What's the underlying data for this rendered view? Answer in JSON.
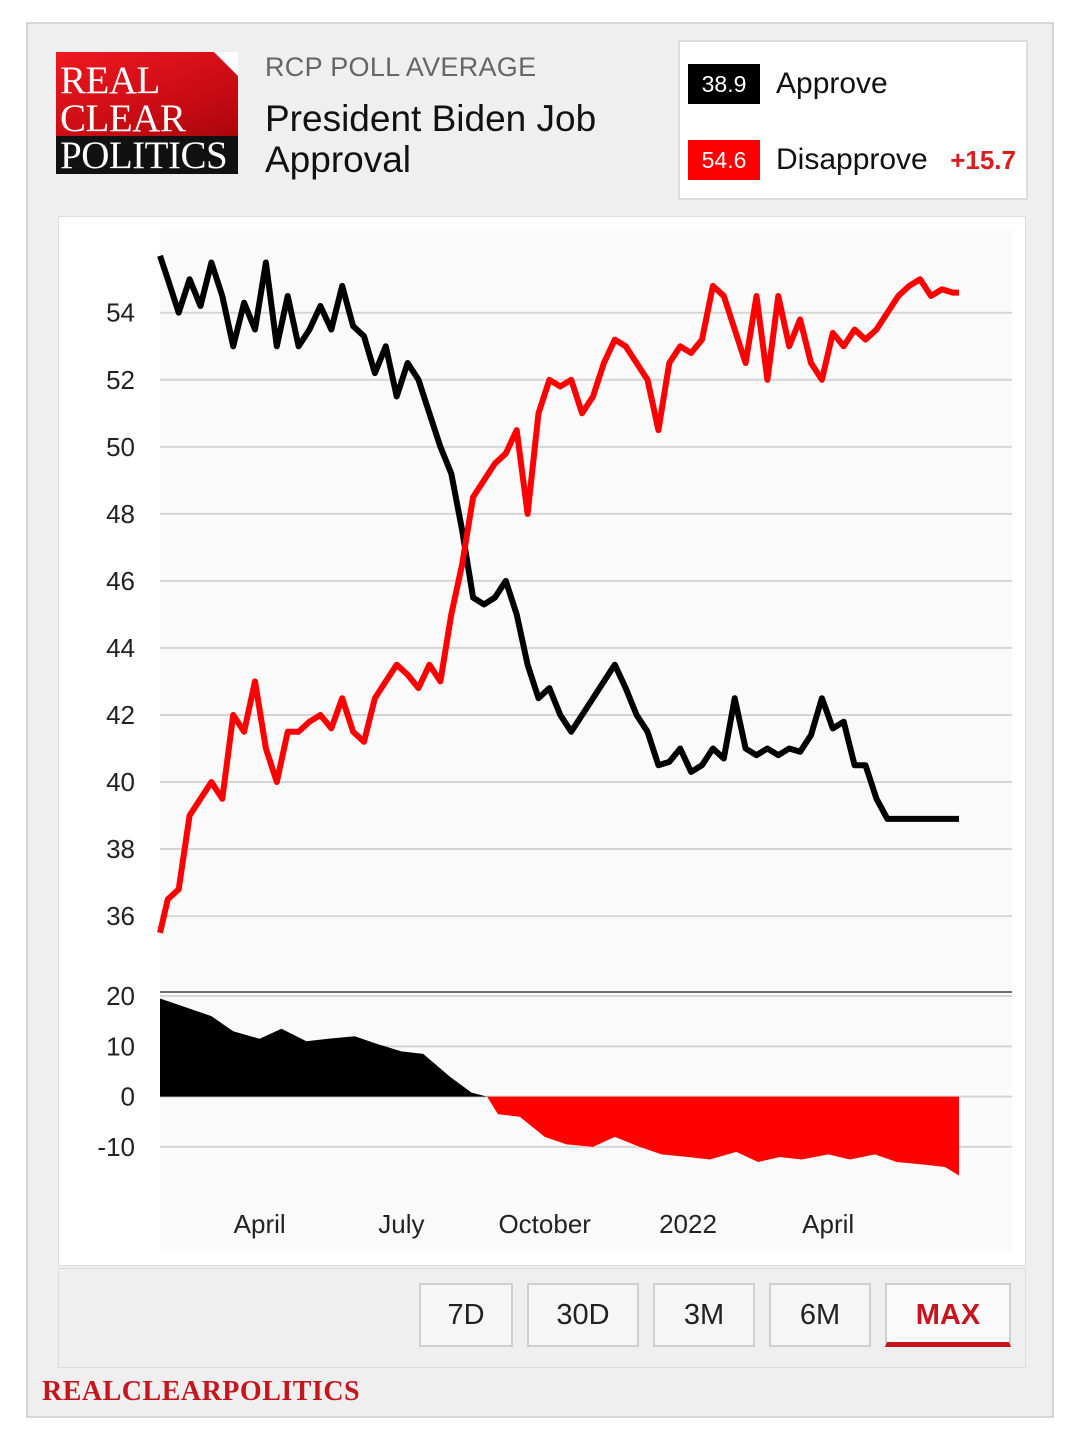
{
  "header": {
    "logo": {
      "line1": "REAL",
      "line2": "CLEAR",
      "line3": "POLITICS"
    },
    "eyebrow": "RCP POLL AVERAGE",
    "title": "President Biden Job Approval"
  },
  "legend": {
    "approve": {
      "value": "38.9",
      "label": "Approve",
      "color": "#000000"
    },
    "disapprove": {
      "value": "54.6",
      "label": "Disapprove",
      "color": "#ff0000"
    },
    "spread": "+15.7"
  },
  "ranges": [
    "7D",
    "30D",
    "3M",
    "6M",
    "MAX"
  ],
  "active_range": "MAX",
  "footer": {
    "brand": "REALCLEARPOLITICS"
  },
  "chart_data": [
    {
      "type": "line",
      "x_range": [
        "2021-01-27",
        "2022-06-24"
      ],
      "x_ticks": [
        {
          "date": "2021-04-01",
          "label": "April"
        },
        {
          "date": "2021-07-01",
          "label": "July"
        },
        {
          "date": "2021-10-01",
          "label": "October"
        },
        {
          "date": "2022-01-01",
          "label": "2022"
        },
        {
          "date": "2022-04-01",
          "label": "April"
        }
      ],
      "y_ticks": [
        54,
        52,
        50,
        48,
        46,
        44,
        42,
        40,
        38,
        36
      ],
      "ylim": [
        34.6,
        56.2
      ],
      "grid": true,
      "series": [
        {
          "name": "Approve",
          "color": "#000000",
          "x": [
            "2021-01-27",
            "2021-02-01",
            "2021-02-08",
            "2021-02-15",
            "2021-02-22",
            "2021-03-01",
            "2021-03-08",
            "2021-03-15",
            "2021-03-22",
            "2021-03-29",
            "2021-04-05",
            "2021-04-12",
            "2021-04-19",
            "2021-04-26",
            "2021-05-03",
            "2021-05-10",
            "2021-05-17",
            "2021-05-24",
            "2021-05-31",
            "2021-06-07",
            "2021-06-14",
            "2021-06-21",
            "2021-06-28",
            "2021-07-05",
            "2021-07-12",
            "2021-07-19",
            "2021-07-26",
            "2021-08-02",
            "2021-08-09",
            "2021-08-16",
            "2021-08-23",
            "2021-08-30",
            "2021-09-06",
            "2021-09-13",
            "2021-09-20",
            "2021-09-27",
            "2021-10-04",
            "2021-10-11",
            "2021-10-18",
            "2021-10-25",
            "2021-11-01",
            "2021-11-08",
            "2021-11-15",
            "2021-11-22",
            "2021-11-29",
            "2021-12-06",
            "2021-12-13",
            "2021-12-20",
            "2021-12-27",
            "2022-01-03",
            "2022-01-10",
            "2022-01-17",
            "2022-01-24",
            "2022-01-31",
            "2022-02-07",
            "2022-02-14",
            "2022-02-21",
            "2022-02-28",
            "2022-03-07",
            "2022-03-14",
            "2022-03-21",
            "2022-03-28",
            "2022-04-04",
            "2022-04-11",
            "2022-04-18",
            "2022-04-25",
            "2022-05-02",
            "2022-05-09",
            "2022-05-16",
            "2022-05-23",
            "2022-05-30",
            "2022-06-06",
            "2022-06-13",
            "2022-06-20",
            "2022-06-24"
          ],
          "values": [
            55.7,
            55.0,
            54.0,
            55.0,
            54.2,
            55.5,
            54.5,
            53.0,
            54.3,
            53.5,
            55.5,
            53.0,
            54.5,
            53.0,
            53.5,
            54.2,
            53.5,
            54.8,
            53.6,
            53.3,
            52.2,
            53.0,
            51.5,
            52.5,
            52.0,
            51.0,
            50.0,
            49.2,
            47.5,
            45.5,
            45.3,
            45.5,
            46.0,
            45.0,
            43.5,
            42.5,
            42.8,
            42.0,
            41.5,
            42.0,
            42.5,
            43.0,
            43.5,
            42.8,
            42.0,
            41.5,
            40.5,
            40.6,
            41.0,
            40.3,
            40.5,
            41.0,
            40.7,
            42.5,
            41.0,
            40.8,
            41.0,
            40.8,
            41.0,
            40.9,
            41.4,
            42.5,
            41.6,
            41.8,
            40.5,
            40.5,
            39.5,
            38.9,
            38.9,
            38.9,
            38.9,
            38.9,
            38.9,
            38.9,
            38.9
          ]
        },
        {
          "name": "Disapprove",
          "color": "#ff0000",
          "x": [
            "2021-01-27",
            "2021-02-01",
            "2021-02-08",
            "2021-02-15",
            "2021-02-22",
            "2021-03-01",
            "2021-03-08",
            "2021-03-15",
            "2021-03-22",
            "2021-03-29",
            "2021-04-05",
            "2021-04-12",
            "2021-04-19",
            "2021-04-26",
            "2021-05-03",
            "2021-05-10",
            "2021-05-17",
            "2021-05-24",
            "2021-05-31",
            "2021-06-07",
            "2021-06-14",
            "2021-06-21",
            "2021-06-28",
            "2021-07-05",
            "2021-07-12",
            "2021-07-19",
            "2021-07-26",
            "2021-08-02",
            "2021-08-09",
            "2021-08-16",
            "2021-08-23",
            "2021-08-30",
            "2021-09-06",
            "2021-09-13",
            "2021-09-20",
            "2021-09-27",
            "2021-10-04",
            "2021-10-11",
            "2021-10-18",
            "2021-10-25",
            "2021-11-01",
            "2021-11-08",
            "2021-11-15",
            "2021-11-22",
            "2021-11-29",
            "2021-12-06",
            "2021-12-13",
            "2021-12-20",
            "2021-12-27",
            "2022-01-03",
            "2022-01-10",
            "2022-01-17",
            "2022-01-24",
            "2022-01-31",
            "2022-02-07",
            "2022-02-14",
            "2022-02-21",
            "2022-02-28",
            "2022-03-07",
            "2022-03-14",
            "2022-03-21",
            "2022-03-28",
            "2022-04-04",
            "2022-04-11",
            "2022-04-18",
            "2022-04-25",
            "2022-05-02",
            "2022-05-09",
            "2022-05-16",
            "2022-05-23",
            "2022-05-30",
            "2022-06-06",
            "2022-06-13",
            "2022-06-20",
            "2022-06-24"
          ],
          "values": [
            35.5,
            36.5,
            36.8,
            39.0,
            39.5,
            40.0,
            39.5,
            42.0,
            41.5,
            43.0,
            41.0,
            40.0,
            41.5,
            41.5,
            41.8,
            42.0,
            41.6,
            42.5,
            41.5,
            41.2,
            42.5,
            43.0,
            43.5,
            43.2,
            42.8,
            43.5,
            43.0,
            45.0,
            46.5,
            48.5,
            49.0,
            49.5,
            49.8,
            50.5,
            48.0,
            51.0,
            52.0,
            51.8,
            52.0,
            51.0,
            51.5,
            52.5,
            53.2,
            53.0,
            52.5,
            52.0,
            50.5,
            52.5,
            53.0,
            52.8,
            53.2,
            54.8,
            54.5,
            53.5,
            52.5,
            54.5,
            52.0,
            54.5,
            53.0,
            53.8,
            52.5,
            52.0,
            53.4,
            53.0,
            53.5,
            53.2,
            53.5,
            54.0,
            54.5,
            54.8,
            55.0,
            54.5,
            54.7,
            54.6,
            54.6
          ]
        }
      ]
    },
    {
      "type": "area",
      "ylim": [
        -14,
        21
      ],
      "y_ticks": [
        20,
        10,
        0,
        -10
      ],
      "series": [
        {
          "name": "Spread",
          "positive_color": "#000000",
          "negative_color": "#ff0000",
          "x": [
            "2021-01-27",
            "2021-02-15",
            "2021-03-01",
            "2021-03-15",
            "2021-04-01",
            "2021-04-15",
            "2021-05-01",
            "2021-05-15",
            "2021-06-01",
            "2021-06-15",
            "2021-07-01",
            "2021-07-15",
            "2021-08-01",
            "2021-08-15",
            "2021-08-25",
            "2021-09-01",
            "2021-09-15",
            "2021-10-01",
            "2021-10-15",
            "2021-11-01",
            "2021-11-15",
            "2021-12-01",
            "2021-12-15",
            "2022-01-01",
            "2022-01-15",
            "2022-02-01",
            "2022-02-15",
            "2022-03-01",
            "2022-03-15",
            "2022-04-01",
            "2022-04-15",
            "2022-05-01",
            "2022-05-15",
            "2022-06-01",
            "2022-06-15",
            "2022-06-24"
          ],
          "values": [
            19.5,
            17.5,
            16.0,
            13.0,
            11.5,
            13.5,
            11.0,
            11.5,
            12.0,
            10.5,
            9.0,
            8.5,
            4.0,
            0.8,
            0.0,
            -3.5,
            -4.0,
            -8.0,
            -9.5,
            -10.0,
            -8.0,
            -10.0,
            -11.5,
            -12.0,
            -12.5,
            -11.0,
            -13.0,
            -12.0,
            -12.5,
            -11.5,
            -12.5,
            -11.5,
            -13.0,
            -13.5,
            -14.0,
            -15.7
          ]
        }
      ]
    }
  ]
}
